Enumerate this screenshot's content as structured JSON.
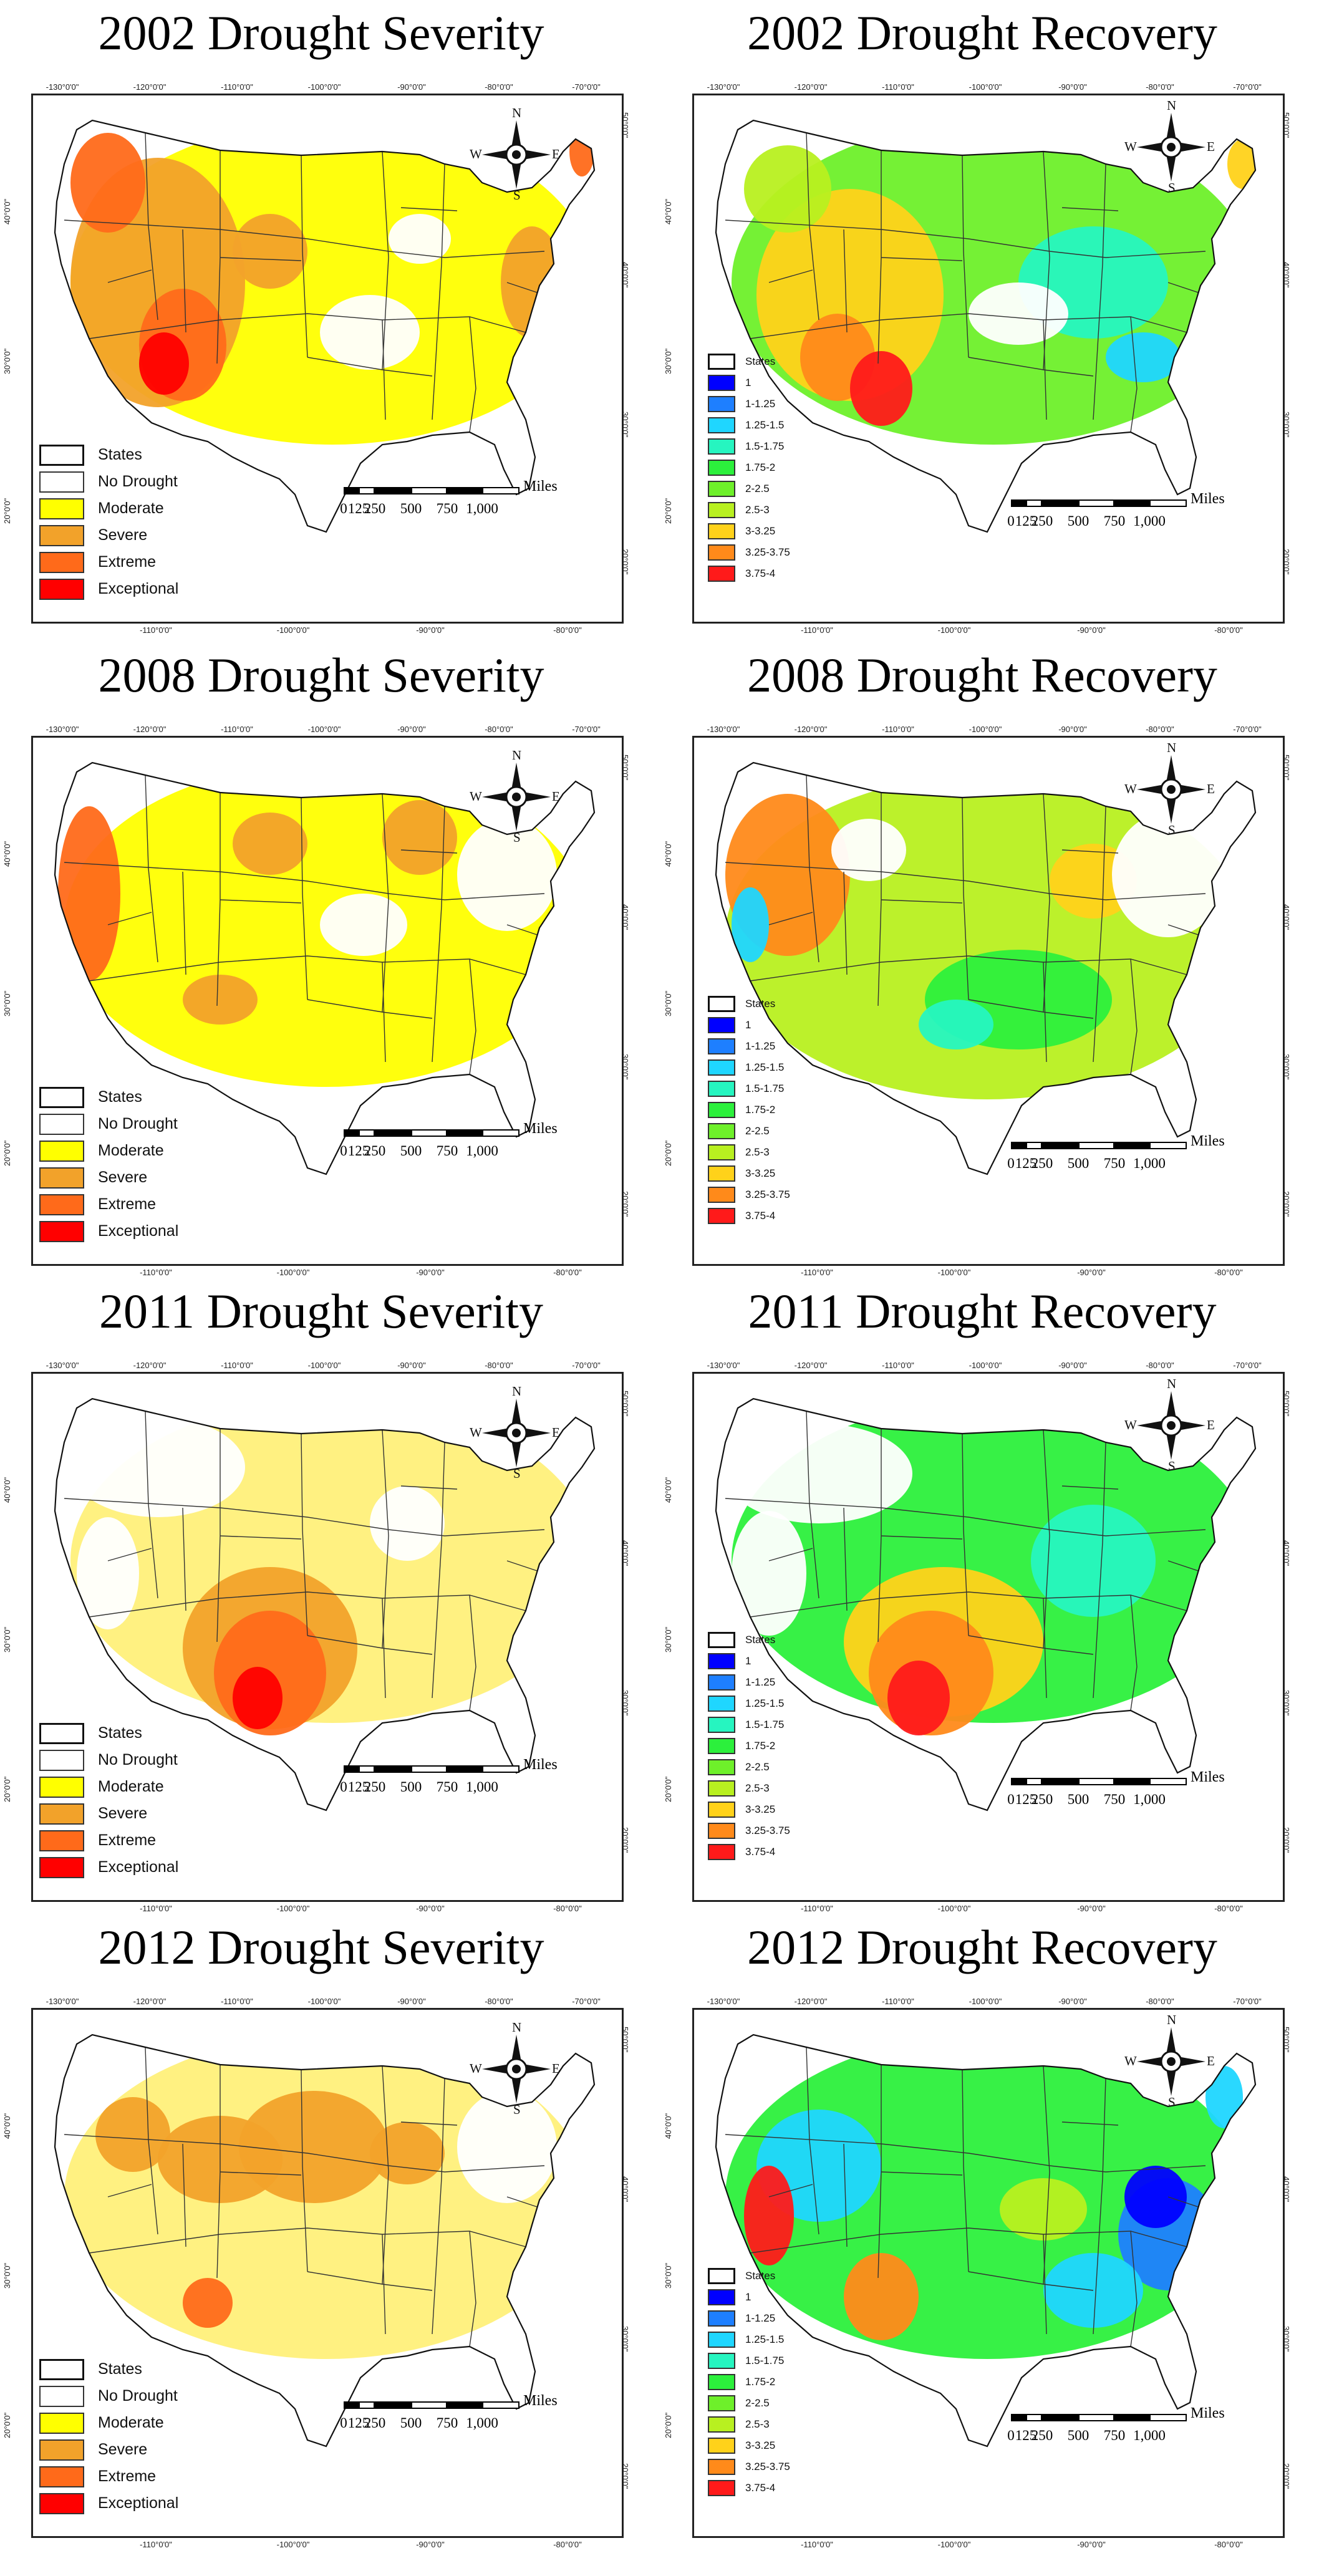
{
  "panels": [
    {
      "id": "p2002s",
      "kind": "severity",
      "title": "2002 Drought Severity"
    },
    {
      "id": "p2002r",
      "kind": "recovery",
      "title": "2002 Drought Recovery"
    },
    {
      "id": "p2008s",
      "kind": "severity",
      "title": "2008 Drought Severity"
    },
    {
      "id": "p2008r",
      "kind": "recovery",
      "title": "2008 Drought Recovery"
    },
    {
      "id": "p2011s",
      "kind": "severity",
      "title": "2011 Drought Severity"
    },
    {
      "id": "p2011r",
      "kind": "recovery",
      "title": "2011 Drought Recovery"
    },
    {
      "id": "p2012s",
      "kind": "severity",
      "title": "2012 Drought Severity"
    },
    {
      "id": "p2012r",
      "kind": "recovery",
      "title": "2012 Drought Recovery"
    }
  ],
  "axis_ticks": {
    "top": [
      "-130°0'0\"",
      "-120°0'0\"",
      "-110°0'0\"",
      "-100°0'0\"",
      "-90°0'0\"",
      "-80°0'0\"",
      "-70°0'0\""
    ],
    "bottom": [
      "-110°0'0\"",
      "-100°0'0\"",
      "-90°0'0\"",
      "-80°0'0\""
    ],
    "right": [
      "50°0'0\"",
      "40°0'0\"",
      "30°0'0\"",
      "20°0'0\""
    ],
    "left": [
      "40°0'0\"",
      "30°0'0\"",
      "20°0'0\""
    ]
  },
  "severity_legend": [
    {
      "label": "States",
      "color": "outline"
    },
    {
      "label": "No Drought",
      "color": "#ffffff"
    },
    {
      "label": "Moderate",
      "color": "#ffff00"
    },
    {
      "label": "Severe",
      "color": "#f2a22a"
    },
    {
      "label": "Extreme",
      "color": "#ff6a1a"
    },
    {
      "label": "Exceptional",
      "color": "#ff0000"
    }
  ],
  "recovery_legend": [
    {
      "label": "States",
      "color": "outline"
    },
    {
      "label": "1",
      "color": "#0000ff"
    },
    {
      "label": "1-1.25",
      "color": "#1e7fff"
    },
    {
      "label": "1.25-1.5",
      "color": "#1fd6ff"
    },
    {
      "label": "1.5-1.75",
      "color": "#26f5c0"
    },
    {
      "label": "1.75-2",
      "color": "#2cf03c"
    },
    {
      "label": "2-2.5",
      "color": "#6ef02a"
    },
    {
      "label": "2.5-3",
      "color": "#b8f020"
    },
    {
      "label": "3-3.25",
      "color": "#ffd21a"
    },
    {
      "label": "3.25-3.75",
      "color": "#ff8a1a"
    },
    {
      "label": "3.75-4",
      "color": "#ff1a1a"
    }
  ],
  "compass": {
    "n": "N",
    "s": "S",
    "e": "E",
    "w": "W"
  },
  "scale_bar": {
    "unit": "Miles",
    "labels": [
      "0",
      "125",
      "250",
      "500",
      "750",
      "1,000"
    ]
  }
}
